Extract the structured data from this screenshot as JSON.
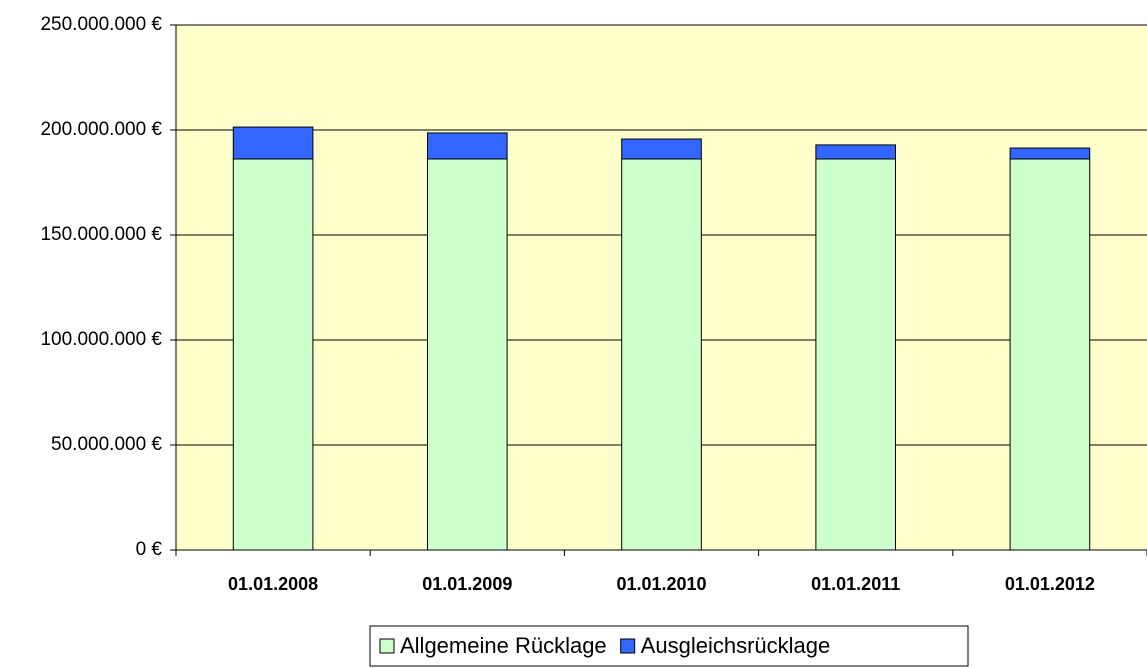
{
  "chart_data": {
    "type": "stacked_bar",
    "categories": [
      "01.01.2008",
      "01.01.2009",
      "01.01.2010",
      "01.01.2011",
      "01.01.2012"
    ],
    "series": [
      {
        "name": "Allgemeine Rücklage",
        "color": "#ccffcc",
        "values": [
          186200000,
          186200000,
          186200000,
          186200000,
          186200000
        ]
      },
      {
        "name": "Ausgleichsrücklage",
        "color": "#3366ff",
        "values": [
          15200000,
          12400000,
          9500000,
          6700000,
          5200000
        ]
      }
    ],
    "ylim": [
      0,
      250000000
    ],
    "yticks": [
      {
        "value": 0,
        "label": "0 €"
      },
      {
        "value": 50000000,
        "label": "50.000.000 €"
      },
      {
        "value": 100000000,
        "label": "100.000.000 €"
      },
      {
        "value": 150000000,
        "label": "150.000.000 €"
      },
      {
        "value": 200000000,
        "label": "200.000.000 €"
      },
      {
        "value": 250000000,
        "label": "250.000.000 €"
      }
    ],
    "grid": true,
    "legend": "bottom"
  }
}
